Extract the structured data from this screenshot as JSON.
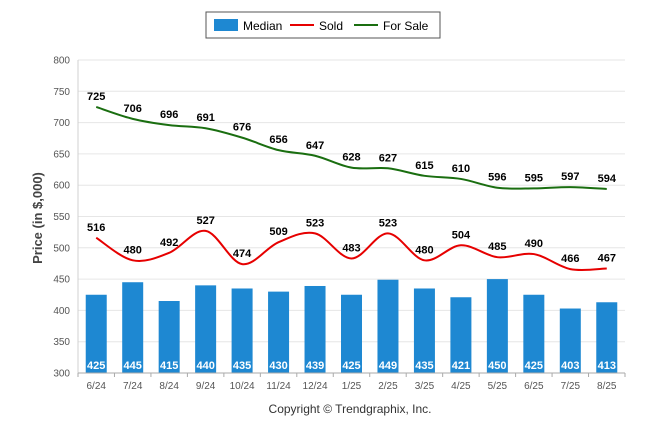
{
  "chart_data": {
    "type": "bar",
    "categories": [
      "6/24",
      "7/24",
      "8/24",
      "9/24",
      "10/24",
      "11/24",
      "12/24",
      "1/25",
      "2/25",
      "3/25",
      "4/25",
      "5/25",
      "6/25",
      "7/25",
      "8/25"
    ],
    "series": [
      {
        "name": "Median",
        "type": "bar",
        "color": "#1e88d2",
        "values": [
          425,
          445,
          415,
          440,
          435,
          430,
          439,
          425,
          449,
          435,
          421,
          450,
          425,
          403,
          413
        ]
      },
      {
        "name": "Sold",
        "type": "line",
        "color": "#e60000",
        "values": [
          516,
          480,
          492,
          527,
          474,
          509,
          523,
          483,
          523,
          480,
          504,
          485,
          490,
          466,
          467
        ]
      },
      {
        "name": "For Sale",
        "type": "line",
        "color": "#1a6e10",
        "values": [
          725,
          706,
          696,
          691,
          676,
          656,
          647,
          628,
          627,
          615,
          610,
          596,
          595,
          597,
          594
        ]
      }
    ],
    "ylabel": "Price (in $,000)",
    "ylim": [
      300,
      800
    ],
    "yticks": [
      300,
      350,
      400,
      450,
      500,
      550,
      600,
      650,
      700,
      750,
      800
    ],
    "grid": true,
    "legend_position": "top-center",
    "footer": "Copyright © Trendgraphix, Inc."
  }
}
